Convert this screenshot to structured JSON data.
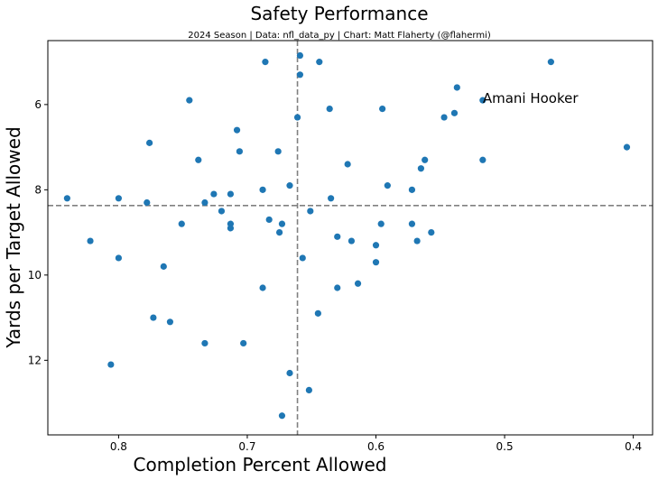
{
  "chart_data": {
    "type": "scatter",
    "title": "Safety Performance",
    "subtitle": "2024 Season | Data: nfl_data_py | Chart: Matt Flaherty (@flahermi)",
    "xlabel": "Completion Percent Allowed",
    "ylabel": "Yards per Target Allowed",
    "xlim": [
      0.855,
      0.385
    ],
    "ylim": [
      13.75,
      4.5
    ],
    "x_inverted": true,
    "y_inverted": true,
    "xticks": [
      0.8,
      0.7,
      0.6,
      0.5,
      0.4
    ],
    "xtick_labels": [
      "0.8",
      "0.7",
      "0.6",
      "0.5",
      "0.4"
    ],
    "yticks": [
      6,
      8,
      10,
      12
    ],
    "ytick_labels": [
      "6",
      "8",
      "10",
      "12"
    ],
    "grid": false,
    "marker_color": "#1f77b4",
    "reference_lines": {
      "x": 0.661,
      "y": 8.37,
      "style": "dashed",
      "color": "#808080"
    },
    "annotations": [
      {
        "text": "Amani Hooker",
        "x": 0.517,
        "y": 5.85
      }
    ],
    "points": [
      {
        "x": 0.659,
        "y": 4.85
      },
      {
        "x": 0.686,
        "y": 5.0
      },
      {
        "x": 0.644,
        "y": 5.0
      },
      {
        "x": 0.464,
        "y": 5.0
      },
      {
        "x": 0.659,
        "y": 5.3
      },
      {
        "x": 0.537,
        "y": 5.6
      },
      {
        "x": 0.745,
        "y": 5.9
      },
      {
        "x": 0.517,
        "y": 5.9
      },
      {
        "x": 0.636,
        "y": 6.1
      },
      {
        "x": 0.595,
        "y": 6.1
      },
      {
        "x": 0.539,
        "y": 6.2
      },
      {
        "x": 0.661,
        "y": 6.3
      },
      {
        "x": 0.547,
        "y": 6.3
      },
      {
        "x": 0.708,
        "y": 6.6
      },
      {
        "x": 0.776,
        "y": 6.9
      },
      {
        "x": 0.405,
        "y": 7.0
      },
      {
        "x": 0.706,
        "y": 7.1
      },
      {
        "x": 0.676,
        "y": 7.1
      },
      {
        "x": 0.738,
        "y": 7.3
      },
      {
        "x": 0.562,
        "y": 7.3
      },
      {
        "x": 0.517,
        "y": 7.3
      },
      {
        "x": 0.622,
        "y": 7.4
      },
      {
        "x": 0.565,
        "y": 7.5
      },
      {
        "x": 0.591,
        "y": 7.9
      },
      {
        "x": 0.667,
        "y": 7.9
      },
      {
        "x": 0.688,
        "y": 8.0
      },
      {
        "x": 0.572,
        "y": 8.0
      },
      {
        "x": 0.726,
        "y": 8.1
      },
      {
        "x": 0.713,
        "y": 8.1
      },
      {
        "x": 0.84,
        "y": 8.2
      },
      {
        "x": 0.8,
        "y": 8.2
      },
      {
        "x": 0.635,
        "y": 8.2
      },
      {
        "x": 0.778,
        "y": 8.3
      },
      {
        "x": 0.733,
        "y": 8.3
      },
      {
        "x": 0.72,
        "y": 8.5
      },
      {
        "x": 0.651,
        "y": 8.5
      },
      {
        "x": 0.683,
        "y": 8.7
      },
      {
        "x": 0.751,
        "y": 8.8
      },
      {
        "x": 0.713,
        "y": 8.8
      },
      {
        "x": 0.673,
        "y": 8.8
      },
      {
        "x": 0.596,
        "y": 8.8
      },
      {
        "x": 0.572,
        "y": 8.8
      },
      {
        "x": 0.713,
        "y": 8.9
      },
      {
        "x": 0.675,
        "y": 9.0
      },
      {
        "x": 0.557,
        "y": 9.0
      },
      {
        "x": 0.63,
        "y": 9.1
      },
      {
        "x": 0.822,
        "y": 9.2
      },
      {
        "x": 0.619,
        "y": 9.2
      },
      {
        "x": 0.568,
        "y": 9.2
      },
      {
        "x": 0.6,
        "y": 9.3
      },
      {
        "x": 0.8,
        "y": 9.6
      },
      {
        "x": 0.657,
        "y": 9.6
      },
      {
        "x": 0.6,
        "y": 9.7
      },
      {
        "x": 0.765,
        "y": 9.8
      },
      {
        "x": 0.614,
        "y": 10.2
      },
      {
        "x": 0.688,
        "y": 10.3
      },
      {
        "x": 0.63,
        "y": 10.3
      },
      {
        "x": 0.645,
        "y": 10.9
      },
      {
        "x": 0.773,
        "y": 11.0
      },
      {
        "x": 0.76,
        "y": 11.1
      },
      {
        "x": 0.733,
        "y": 11.6
      },
      {
        "x": 0.703,
        "y": 11.6
      },
      {
        "x": 0.806,
        "y": 12.1
      },
      {
        "x": 0.667,
        "y": 12.3
      },
      {
        "x": 0.652,
        "y": 12.7
      },
      {
        "x": 0.673,
        "y": 13.3
      }
    ]
  }
}
